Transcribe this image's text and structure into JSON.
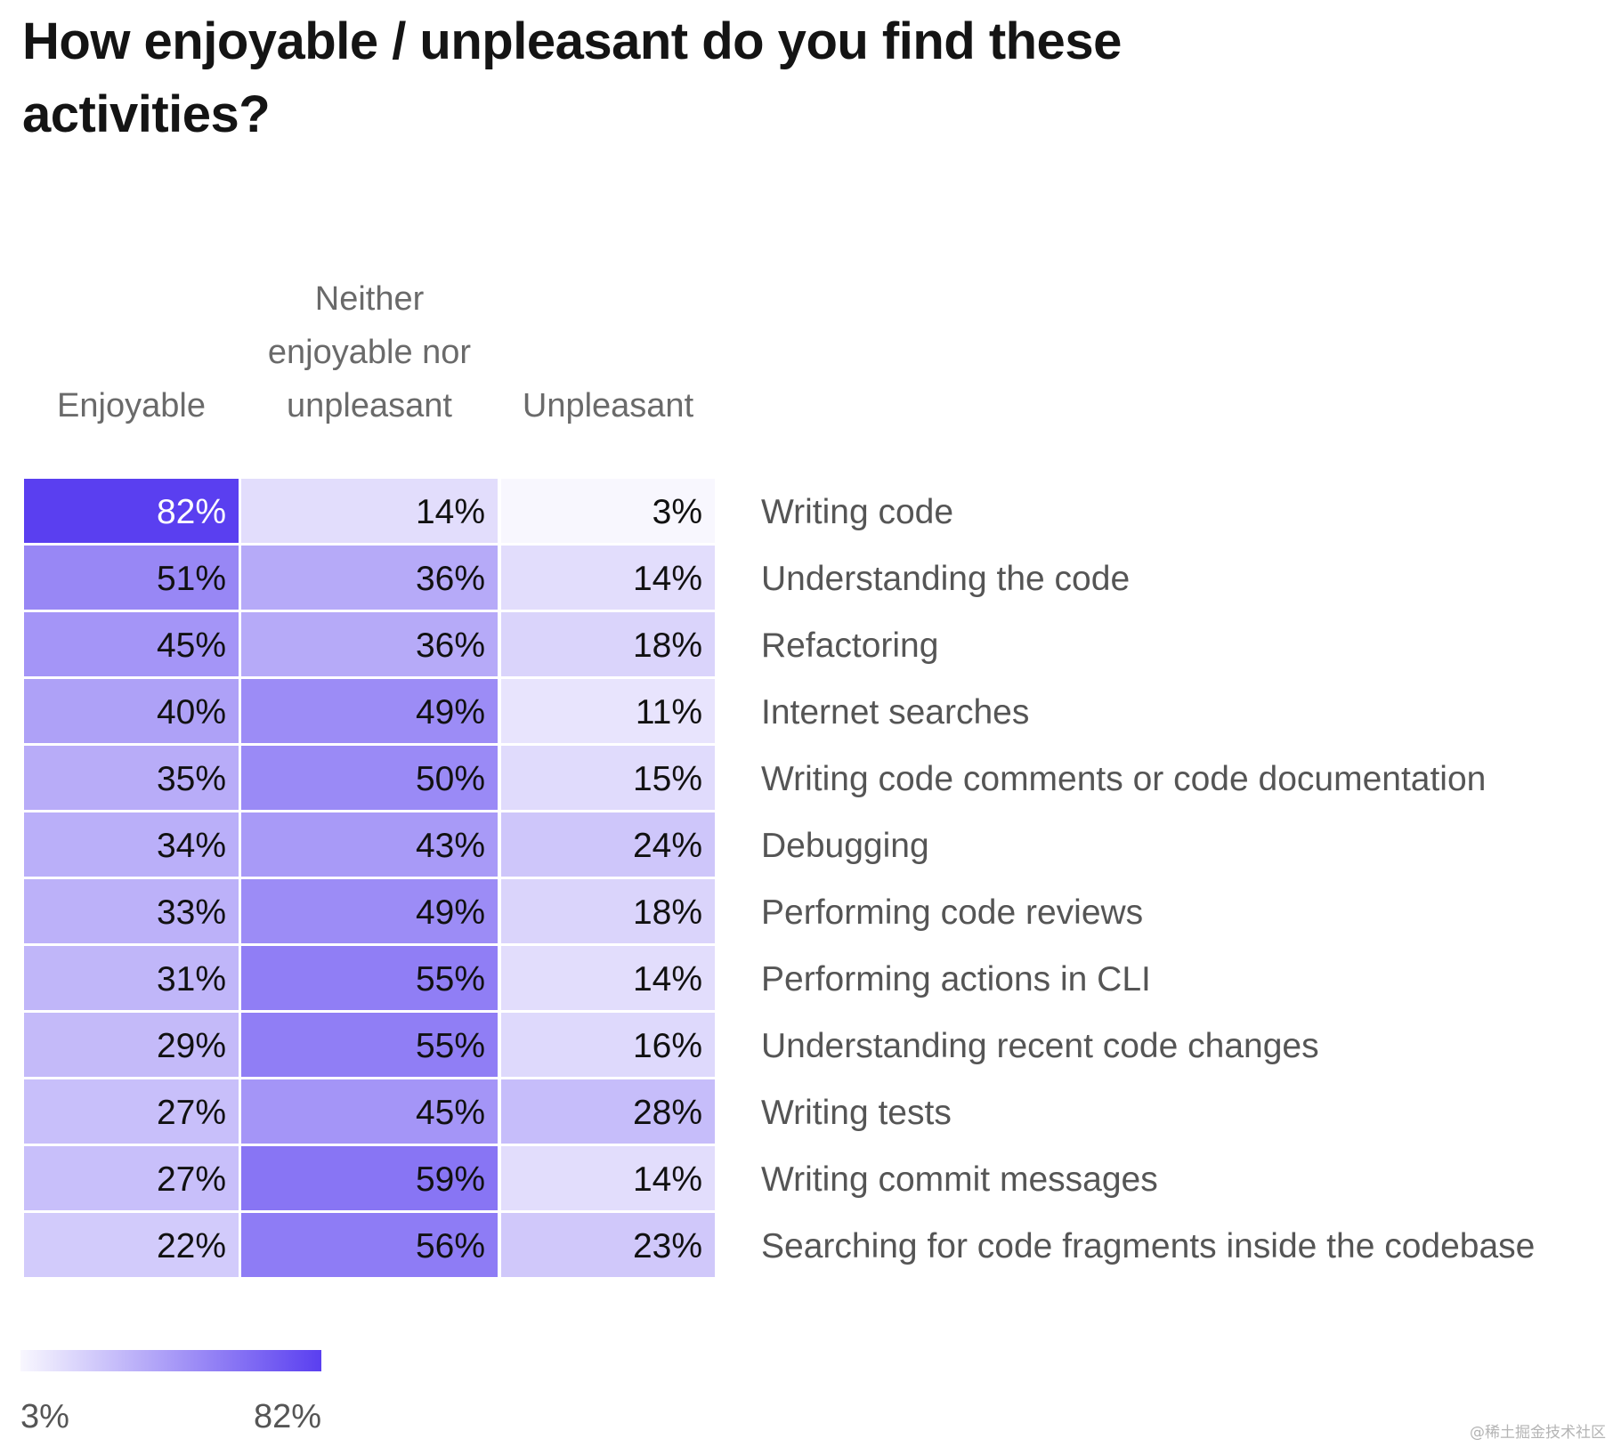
{
  "chart_data": {
    "type": "heatmap",
    "title": "How enjoyable / unpleasant do you find these activities?",
    "columns": [
      "Enjoyable",
      "Neither enjoyable nor unpleasant",
      "Unpleasant"
    ],
    "rows": [
      "Writing code",
      "Understanding the code",
      "Refactoring",
      "Internet searches",
      "Writing code comments or code documentation",
      "Debugging",
      "Performing code reviews",
      "Performing actions in CLI",
      "Understanding recent code changes",
      "Writing tests",
      "Writing commit messages",
      "Searching for code fragments inside the codebase"
    ],
    "values": [
      [
        82,
        14,
        3
      ],
      [
        51,
        36,
        14
      ],
      [
        45,
        36,
        18
      ],
      [
        40,
        49,
        11
      ],
      [
        35,
        50,
        15
      ],
      [
        34,
        43,
        24
      ],
      [
        33,
        49,
        18
      ],
      [
        31,
        55,
        14
      ],
      [
        29,
        55,
        16
      ],
      [
        27,
        45,
        28
      ],
      [
        27,
        59,
        14
      ],
      [
        22,
        56,
        23
      ]
    ],
    "unit": "%",
    "scale": {
      "min": 3,
      "max": 82,
      "min_label": "3%",
      "max_label": "82%",
      "color_low": "#f8f7fe",
      "color_high": "#5a3ff0"
    }
  },
  "colors": {
    "text_dark": "#111111",
    "text_light": "#ffffff"
  },
  "watermark": "@稀土掘金技术社区"
}
